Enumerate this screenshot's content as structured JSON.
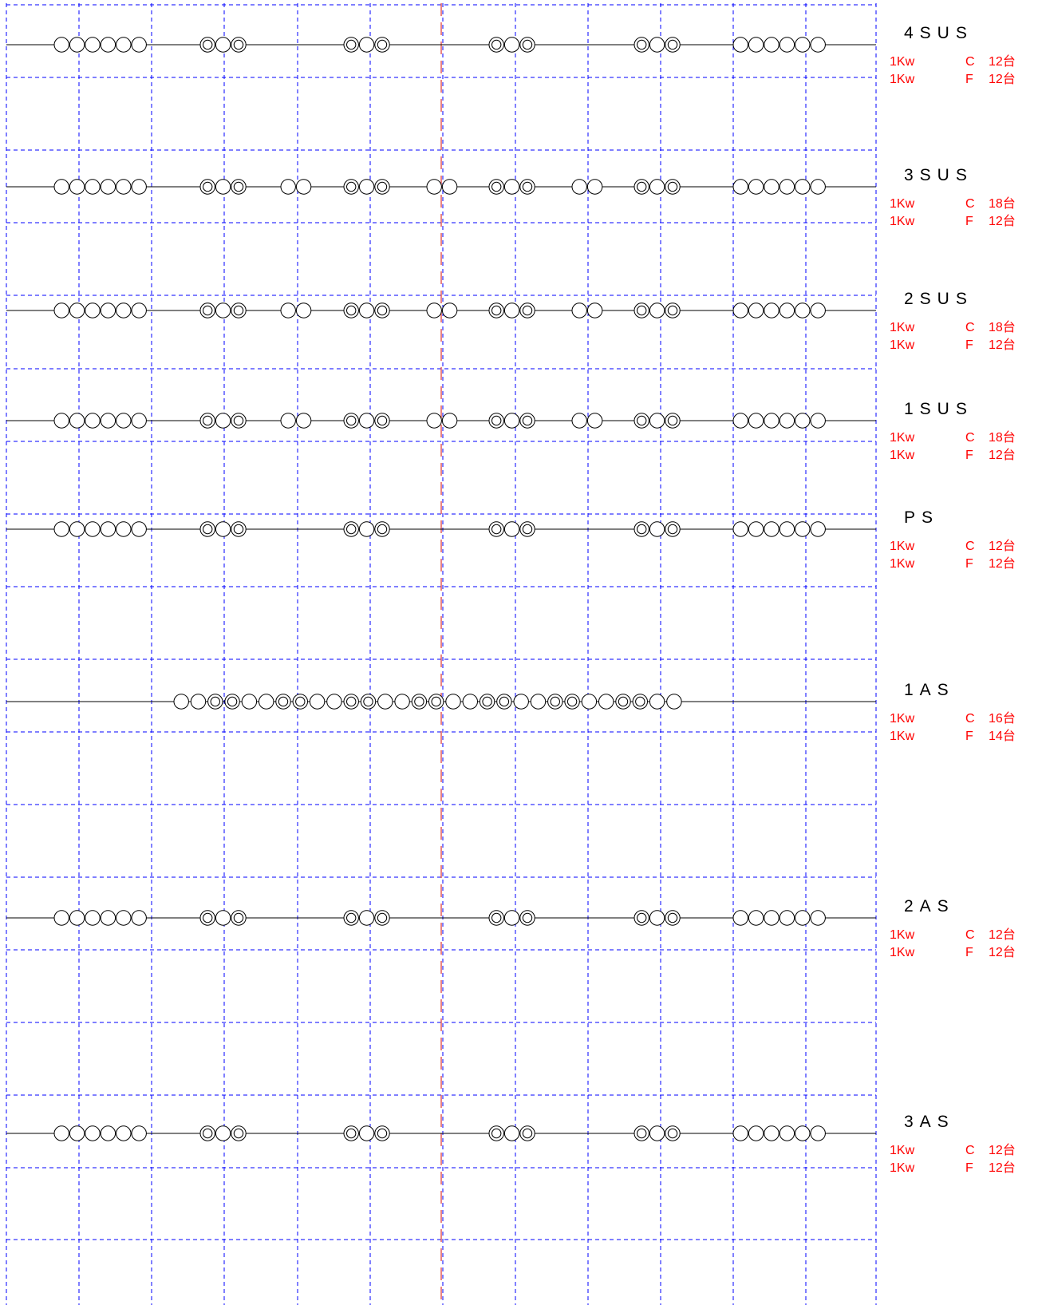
{
  "colors": {
    "grid": "#0000ff",
    "center_line": "#e05050",
    "bus_line": "#000000",
    "fixture": "#000000",
    "label_title": "#000000",
    "label_spec": "#ff0000"
  },
  "rows": [
    {
      "title": "4SUS",
      "spec_lines": [
        {
          "power": "1Kw",
          "type": "C",
          "count": "12台"
        },
        {
          "power": "1Kw",
          "type": "F",
          "count": "12台"
        }
      ],
      "groups": [
        [
          "s",
          "s",
          "s",
          "s",
          "s",
          "s"
        ],
        [
          "d",
          "s",
          "d"
        ],
        [
          "d",
          "s",
          "d"
        ],
        [
          "d",
          "s",
          "d"
        ],
        [
          "d",
          "s",
          "d"
        ],
        [
          "s",
          "s",
          "s",
          "s",
          "s",
          "s"
        ]
      ]
    },
    {
      "title": "3SUS",
      "spec_lines": [
        {
          "power": "1Kw",
          "type": "C",
          "count": "18台"
        },
        {
          "power": "1Kw",
          "type": "F",
          "count": "12台"
        }
      ],
      "groups": [
        [
          "s",
          "s",
          "s",
          "s",
          "s",
          "s"
        ],
        [
          "d",
          "s",
          "d"
        ],
        [
          "s",
          "s"
        ],
        [
          "d",
          "s",
          "d"
        ],
        [
          "s",
          "s"
        ],
        [
          "d",
          "s",
          "d"
        ],
        [
          "s",
          "s"
        ],
        [
          "d",
          "s",
          "d"
        ],
        [
          "s",
          "s",
          "s",
          "s",
          "s",
          "s"
        ]
      ]
    },
    {
      "title": "2SUS",
      "spec_lines": [
        {
          "power": "1Kw",
          "type": "C",
          "count": "18台"
        },
        {
          "power": "1Kw",
          "type": "F",
          "count": "12台"
        }
      ],
      "groups": [
        [
          "s",
          "s",
          "s",
          "s",
          "s",
          "s"
        ],
        [
          "d",
          "s",
          "d"
        ],
        [
          "s",
          "s"
        ],
        [
          "d",
          "s",
          "d"
        ],
        [
          "s",
          "s"
        ],
        [
          "d",
          "s",
          "d"
        ],
        [
          "s",
          "s"
        ],
        [
          "d",
          "s",
          "d"
        ],
        [
          "s",
          "s",
          "s",
          "s",
          "s",
          "s"
        ]
      ]
    },
    {
      "title": "1SUS",
      "spec_lines": [
        {
          "power": "1Kw",
          "type": "C",
          "count": "18台"
        },
        {
          "power": "1Kw",
          "type": "F",
          "count": "12台"
        }
      ],
      "groups": [
        [
          "s",
          "s",
          "s",
          "s",
          "s",
          "s"
        ],
        [
          "d",
          "s",
          "d"
        ],
        [
          "s",
          "s"
        ],
        [
          "d",
          "s",
          "d"
        ],
        [
          "s",
          "s"
        ],
        [
          "d",
          "s",
          "d"
        ],
        [
          "s",
          "s"
        ],
        [
          "d",
          "s",
          "d"
        ],
        [
          "s",
          "s",
          "s",
          "s",
          "s",
          "s"
        ]
      ]
    },
    {
      "title": "PS",
      "spec_lines": [
        {
          "power": "1Kw",
          "type": "C",
          "count": "12台"
        },
        {
          "power": "1Kw",
          "type": "F",
          "count": "12台"
        }
      ],
      "groups": [
        [
          "s",
          "s",
          "s",
          "s",
          "s",
          "s"
        ],
        [
          "d",
          "s",
          "d"
        ],
        [
          "d",
          "s",
          "d"
        ],
        [
          "d",
          "s",
          "d"
        ],
        [
          "d",
          "s",
          "d"
        ],
        [
          "s",
          "s",
          "s",
          "s",
          "s",
          "s"
        ]
      ]
    },
    {
      "title": "1AS",
      "spec_lines": [
        {
          "power": "1Kw",
          "type": "C",
          "count": "16台"
        },
        {
          "power": "1Kw",
          "type": "F",
          "count": "14台"
        }
      ],
      "groups": [
        [
          "s",
          "s",
          "d",
          "d",
          "s",
          "s",
          "d",
          "d",
          "s",
          "s",
          "d",
          "d",
          "s",
          "s",
          "d",
          "d",
          "s",
          "s",
          "d",
          "d",
          "s",
          "s",
          "d",
          "d",
          "s",
          "s",
          "d",
          "d",
          "s",
          "s"
        ]
      ]
    },
    {
      "title": "2AS",
      "spec_lines": [
        {
          "power": "1Kw",
          "type": "C",
          "count": "12台"
        },
        {
          "power": "1Kw",
          "type": "F",
          "count": "12台"
        }
      ],
      "groups": [
        [
          "s",
          "s",
          "s",
          "s",
          "s",
          "s"
        ],
        [
          "d",
          "s",
          "d"
        ],
        [
          "d",
          "s",
          "d"
        ],
        [
          "d",
          "s",
          "d"
        ],
        [
          "d",
          "s",
          "d"
        ],
        [
          "s",
          "s",
          "s",
          "s",
          "s",
          "s"
        ]
      ]
    },
    {
      "title": "3AS",
      "spec_lines": [
        {
          "power": "1Kw",
          "type": "C",
          "count": "12台"
        },
        {
          "power": "1Kw",
          "type": "F",
          "count": "12台"
        }
      ],
      "groups": [
        [
          "s",
          "s",
          "s",
          "s",
          "s",
          "s"
        ],
        [
          "d",
          "s",
          "d"
        ],
        [
          "d",
          "s",
          "d"
        ],
        [
          "d",
          "s",
          "d"
        ],
        [
          "d",
          "s",
          "d"
        ],
        [
          "s",
          "s",
          "s",
          "s",
          "s",
          "s"
        ]
      ]
    }
  ]
}
